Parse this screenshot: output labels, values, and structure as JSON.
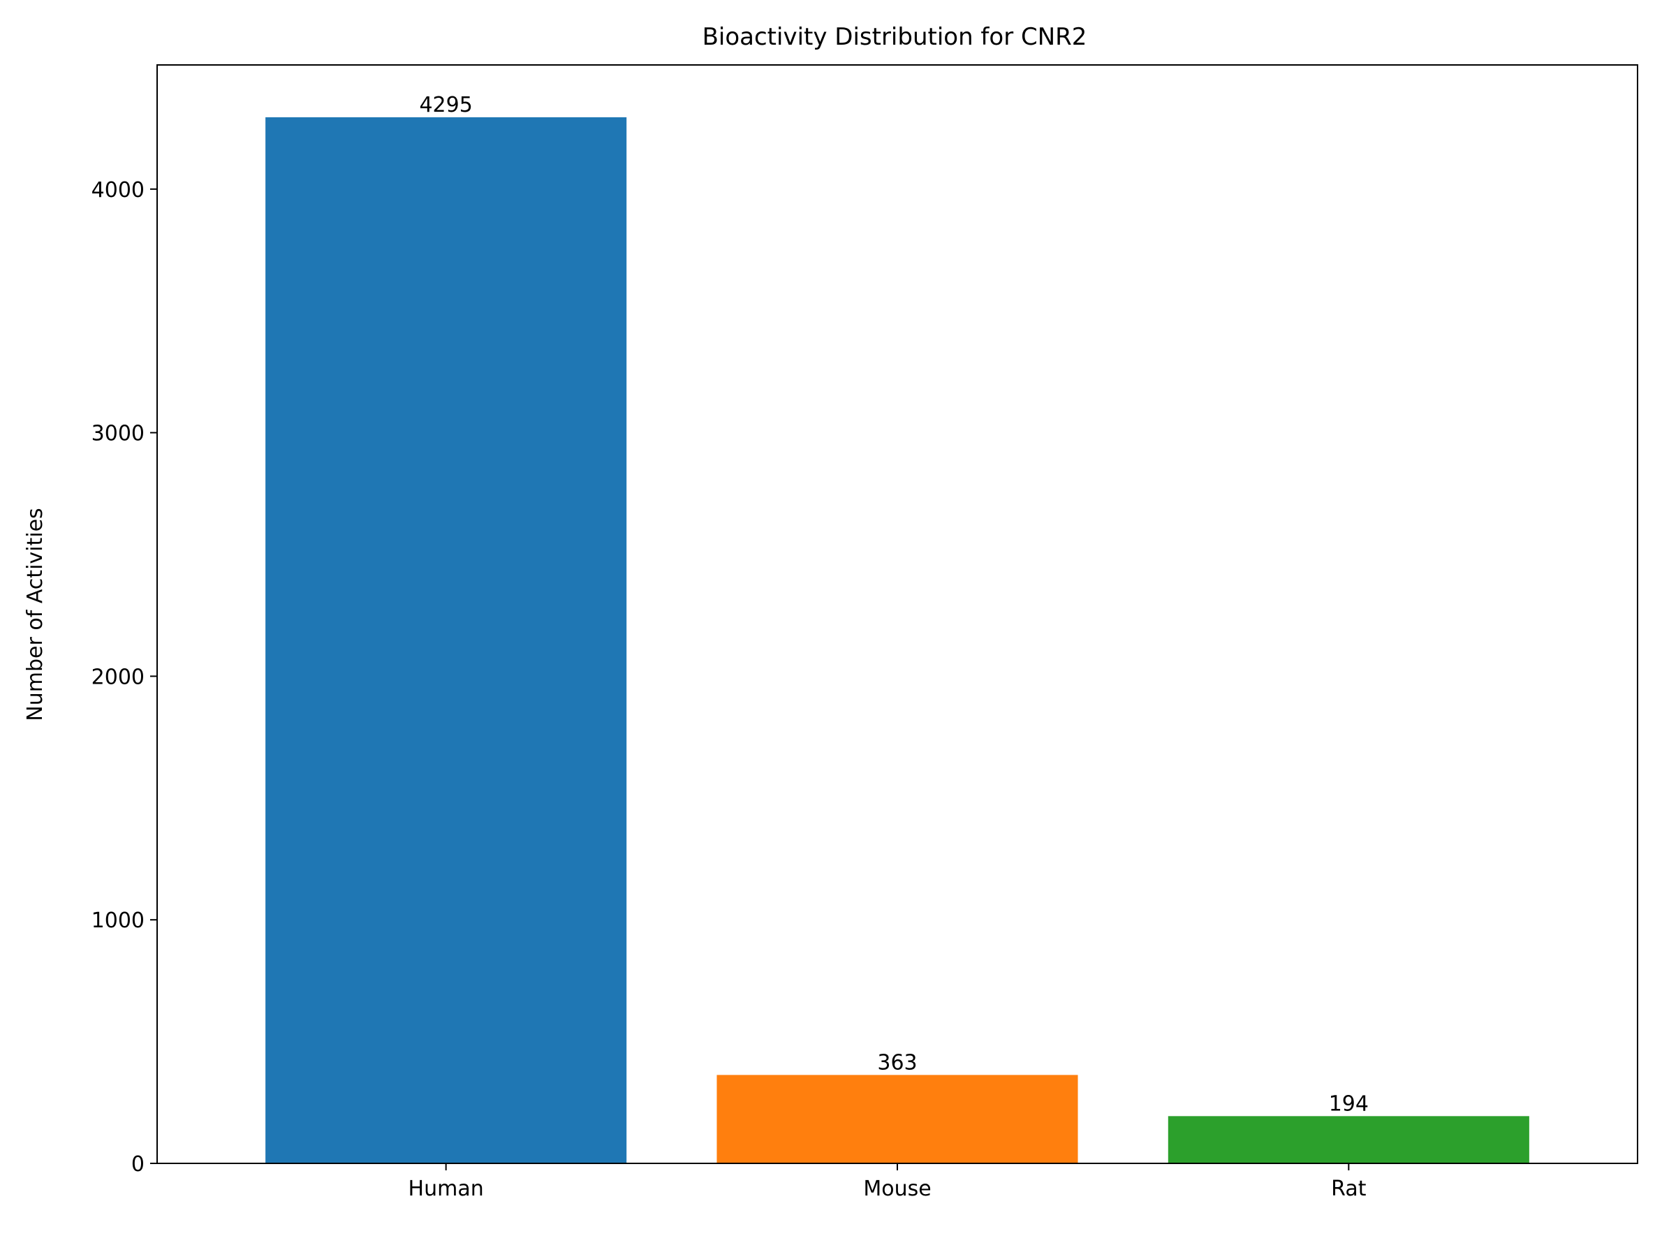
{
  "chart_data": {
    "type": "bar",
    "title": "Bioactivity Distribution for CNR2",
    "xlabel": "",
    "ylabel": "Number of Activities",
    "categories": [
      "Human",
      "Mouse",
      "Rat"
    ],
    "values": [
      4295,
      363,
      194
    ],
    "value_labels": [
      "4295",
      "363",
      "194"
    ],
    "colors": [
      "#1f77b4",
      "#ff7f0e",
      "#2ca02c"
    ],
    "ylim": [
      0,
      4509.75
    ],
    "yticks": [
      0,
      1000,
      2000,
      3000,
      4000
    ],
    "ytick_labels": [
      "0",
      "1000",
      "2000",
      "3000",
      "4000"
    ],
    "grid": false,
    "legend": "none"
  }
}
